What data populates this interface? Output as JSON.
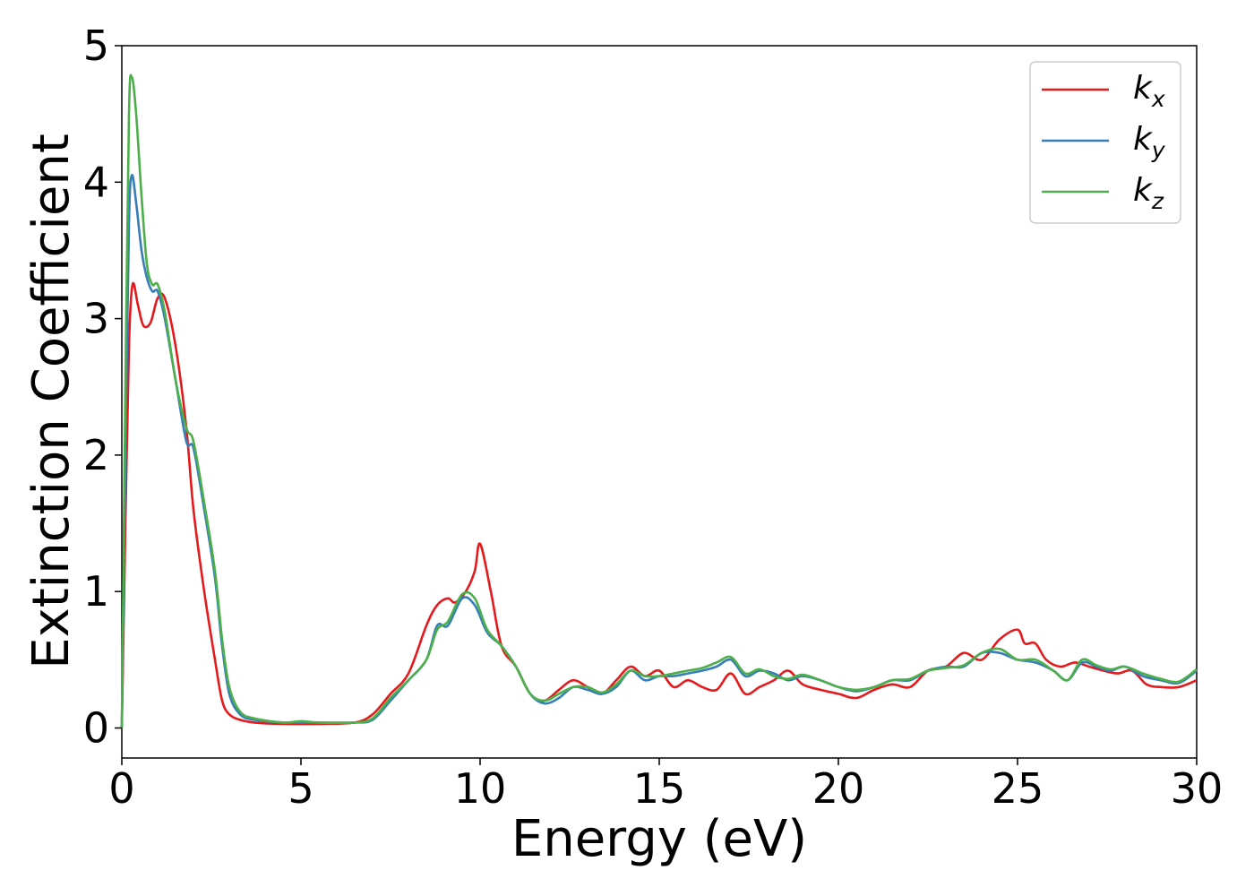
{
  "chart_data": {
    "type": "line",
    "xlabel": "Energy (eV)",
    "ylabel": "Extinction Coefficient",
    "xlim": [
      0,
      30
    ],
    "ylim": [
      -0.22,
      5.0
    ],
    "xticks": [
      "0",
      "5",
      "10",
      "15",
      "20",
      "25",
      "30"
    ],
    "yticks": [
      "0",
      "1",
      "2",
      "3",
      "4",
      "5"
    ],
    "grid": false,
    "legend_position": "top-right",
    "series": [
      {
        "name": "k",
        "subscript": "x",
        "color": "#e41a1c",
        "x": [
          0,
          0.1,
          0.2,
          0.3,
          0.45,
          0.6,
          0.8,
          1.0,
          1.2,
          1.5,
          1.8,
          2.0,
          2.3,
          2.6,
          2.8,
          3.0,
          3.3,
          3.7,
          4.5,
          5.5,
          6.5,
          7.0,
          7.5,
          8.0,
          8.5,
          8.8,
          9.1,
          9.3,
          9.6,
          9.85,
          10.0,
          10.3,
          10.6,
          11.0,
          11.4,
          11.8,
          12.2,
          12.6,
          13.0,
          13.4,
          13.8,
          14.2,
          14.6,
          15.0,
          15.4,
          15.8,
          16.2,
          16.6,
          17.0,
          17.4,
          17.8,
          18.2,
          18.6,
          19.0,
          19.5,
          20.0,
          20.5,
          21.0,
          21.5,
          22.0,
          22.5,
          23.0,
          23.5,
          24.0,
          24.5,
          25.0,
          25.2,
          25.5,
          25.8,
          26.2,
          26.6,
          27.0,
          27.4,
          27.8,
          28.2,
          28.6,
          29.0,
          29.5,
          30.0
        ],
        "values": [
          0,
          1.5,
          2.8,
          3.25,
          3.1,
          2.95,
          2.97,
          3.15,
          3.15,
          2.8,
          2.2,
          1.6,
          1.0,
          0.5,
          0.2,
          0.1,
          0.06,
          0.04,
          0.03,
          0.03,
          0.04,
          0.1,
          0.25,
          0.4,
          0.75,
          0.9,
          0.95,
          0.92,
          1.0,
          1.15,
          1.35,
          1.0,
          0.6,
          0.45,
          0.25,
          0.2,
          0.28,
          0.35,
          0.3,
          0.25,
          0.35,
          0.45,
          0.38,
          0.42,
          0.3,
          0.35,
          0.3,
          0.28,
          0.4,
          0.25,
          0.3,
          0.35,
          0.42,
          0.32,
          0.28,
          0.25,
          0.22,
          0.28,
          0.32,
          0.3,
          0.42,
          0.45,
          0.55,
          0.5,
          0.65,
          0.72,
          0.62,
          0.62,
          0.5,
          0.45,
          0.48,
          0.45,
          0.42,
          0.4,
          0.42,
          0.32,
          0.3,
          0.3,
          0.35
        ]
      },
      {
        "name": "k",
        "subscript": "y",
        "color": "#377eb8",
        "x": [
          0,
          0.1,
          0.2,
          0.28,
          0.4,
          0.55,
          0.7,
          0.85,
          1.0,
          1.2,
          1.5,
          1.8,
          2.0,
          2.3,
          2.6,
          2.8,
          3.0,
          3.3,
          3.7,
          4.5,
          5.0,
          5.5,
          6.5,
          7.0,
          7.5,
          8.0,
          8.5,
          8.8,
          9.1,
          9.5,
          9.85,
          10.2,
          10.6,
          11.0,
          11.4,
          11.8,
          12.2,
          12.6,
          13.0,
          13.4,
          13.8,
          14.2,
          14.6,
          15.0,
          15.4,
          15.8,
          16.2,
          16.6,
          17.0,
          17.4,
          17.8,
          18.2,
          18.6,
          19.0,
          19.5,
          20.0,
          20.5,
          21.0,
          21.5,
          22.0,
          22.5,
          23.0,
          23.5,
          24.0,
          24.5,
          25.0,
          25.5,
          26.0,
          26.4,
          26.8,
          27.2,
          27.6,
          28.0,
          28.5,
          29.0,
          29.5,
          30.0
        ],
        "values": [
          0,
          2.0,
          3.7,
          4.05,
          3.85,
          3.5,
          3.3,
          3.2,
          3.2,
          3.0,
          2.55,
          2.1,
          2.05,
          1.6,
          1.1,
          0.6,
          0.25,
          0.1,
          0.06,
          0.04,
          0.04,
          0.04,
          0.04,
          0.06,
          0.2,
          0.35,
          0.5,
          0.75,
          0.75,
          0.95,
          0.9,
          0.7,
          0.6,
          0.45,
          0.25,
          0.18,
          0.22,
          0.3,
          0.28,
          0.25,
          0.3,
          0.42,
          0.35,
          0.38,
          0.38,
          0.4,
          0.42,
          0.45,
          0.5,
          0.38,
          0.42,
          0.4,
          0.35,
          0.38,
          0.35,
          0.3,
          0.27,
          0.3,
          0.35,
          0.35,
          0.42,
          0.45,
          0.45,
          0.55,
          0.55,
          0.5,
          0.48,
          0.42,
          0.35,
          0.48,
          0.45,
          0.42,
          0.45,
          0.38,
          0.35,
          0.33,
          0.42
        ]
      },
      {
        "name": "k",
        "subscript": "z",
        "color": "#4daf4a",
        "x": [
          0,
          0.1,
          0.2,
          0.28,
          0.4,
          0.55,
          0.7,
          0.85,
          1.0,
          1.2,
          1.5,
          1.8,
          2.0,
          2.3,
          2.6,
          2.8,
          3.0,
          3.3,
          3.7,
          4.5,
          5.0,
          5.5,
          6.5,
          7.0,
          7.5,
          8.0,
          8.5,
          8.8,
          9.1,
          9.5,
          9.85,
          10.2,
          10.6,
          11.0,
          11.4,
          11.8,
          12.2,
          12.6,
          13.0,
          13.4,
          13.8,
          14.2,
          14.6,
          15.0,
          15.4,
          15.8,
          16.2,
          16.6,
          17.0,
          17.4,
          17.8,
          18.2,
          18.6,
          19.0,
          19.5,
          20.0,
          20.5,
          21.0,
          21.5,
          22.0,
          22.5,
          23.0,
          23.5,
          24.0,
          24.5,
          25.0,
          25.5,
          26.0,
          26.4,
          26.8,
          27.2,
          27.6,
          28.0,
          28.5,
          29.0,
          29.5,
          30.0
        ],
        "values": [
          0,
          2.5,
          4.5,
          4.77,
          4.5,
          3.9,
          3.4,
          3.25,
          3.25,
          3.05,
          2.55,
          2.2,
          2.1,
          1.65,
          1.15,
          0.65,
          0.3,
          0.12,
          0.07,
          0.04,
          0.05,
          0.04,
          0.04,
          0.07,
          0.22,
          0.35,
          0.5,
          0.72,
          0.78,
          0.98,
          0.95,
          0.72,
          0.6,
          0.45,
          0.25,
          0.2,
          0.25,
          0.3,
          0.3,
          0.26,
          0.32,
          0.42,
          0.38,
          0.38,
          0.4,
          0.42,
          0.44,
          0.48,
          0.52,
          0.4,
          0.43,
          0.38,
          0.36,
          0.39,
          0.35,
          0.3,
          0.28,
          0.3,
          0.35,
          0.36,
          0.42,
          0.44,
          0.46,
          0.55,
          0.58,
          0.5,
          0.5,
          0.42,
          0.35,
          0.5,
          0.46,
          0.43,
          0.45,
          0.4,
          0.36,
          0.34,
          0.43
        ]
      }
    ]
  }
}
